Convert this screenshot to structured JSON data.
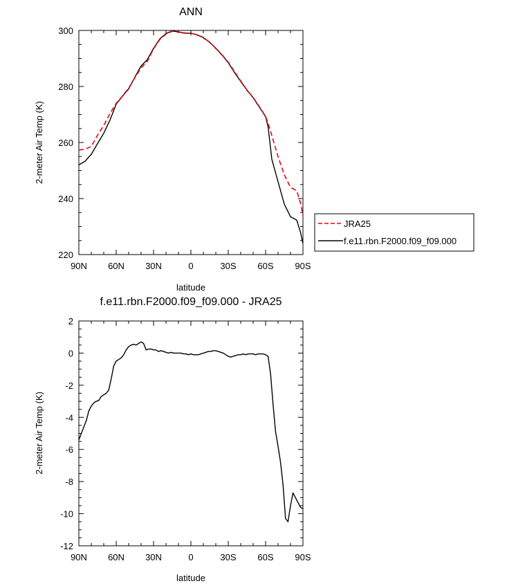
{
  "chart_data": [
    {
      "type": "line",
      "title": "ANN",
      "xlabel": "latitude",
      "ylabel": "2-meter Air Temp (K)",
      "x_ticks": [
        90,
        60,
        30,
        0,
        -30,
        -60,
        -90
      ],
      "x_tick_labels": [
        "90N",
        "60N",
        "30N",
        "0",
        "30S",
        "60S",
        "90S"
      ],
      "xlim": [
        90,
        -90
      ],
      "y_ticks": [
        220,
        240,
        260,
        280,
        300
      ],
      "ylim": [
        220,
        300
      ],
      "legend_position": "right",
      "series": [
        {
          "name": "JRA25",
          "style": "dashed",
          "color": "#e8000b",
          "x": [
            90,
            85,
            80,
            75,
            70,
            65,
            60,
            55,
            50,
            45,
            40,
            35,
            30,
            25,
            20,
            15,
            10,
            5,
            0,
            -5,
            -10,
            -15,
            -20,
            -25,
            -30,
            -35,
            -40,
            -45,
            -50,
            -55,
            -60,
            -62,
            -65,
            -70,
            -75,
            -80,
            -85,
            -88,
            -90
          ],
          "values": [
            257.3,
            257.6,
            258.6,
            262.6,
            266.1,
            270.3,
            274.0,
            276.6,
            279.4,
            283.1,
            286.6,
            289.0,
            293.4,
            296.8,
            298.7,
            299.7,
            299.4,
            299.1,
            299.0,
            298.5,
            297.5,
            295.8,
            293.7,
            291.3,
            288.7,
            285.3,
            282.0,
            278.8,
            276.1,
            272.8,
            269.3,
            266.9,
            262.5,
            255.0,
            248.5,
            244.0,
            242.8,
            238.5,
            234.0
          ]
        },
        {
          "name": "f.e11.rbn.F2000.f09_f09.000",
          "style": "solid",
          "color": "#000000",
          "x": [
            90,
            85,
            80,
            75,
            70,
            65,
            60,
            55,
            50,
            45,
            40,
            35,
            30,
            25,
            20,
            15,
            10,
            5,
            0,
            -5,
            -10,
            -15,
            -20,
            -25,
            -30,
            -35,
            -40,
            -45,
            -50,
            -55,
            -60,
            -62,
            -65,
            -70,
            -75,
            -80,
            -85,
            -88,
            -90
          ],
          "values": [
            252.0,
            253.3,
            255.8,
            259.6,
            263.3,
            268.0,
            273.7,
            276.5,
            279.1,
            283.3,
            287.3,
            289.6,
            293.6,
            297.0,
            298.9,
            299.8,
            299.5,
            299.0,
            299.0,
            298.4,
            297.4,
            295.8,
            293.6,
            291.2,
            288.5,
            285.0,
            281.8,
            278.7,
            276.0,
            272.6,
            269.2,
            265.6,
            254.0,
            246.0,
            238.0,
            233.5,
            232.3,
            228.0,
            224.0
          ]
        }
      ]
    },
    {
      "type": "line",
      "title": "f.e11.rbn.F2000.f09_f09.000 - JRA25",
      "xlabel": "latitude",
      "ylabel": "2-meter Air Temp (K)",
      "x_ticks": [
        90,
        60,
        30,
        0,
        -30,
        -60,
        -90
      ],
      "x_tick_labels": [
        "90N",
        "60N",
        "30N",
        "0",
        "30S",
        "60S",
        "90S"
      ],
      "xlim": [
        90,
        -90
      ],
      "y_ticks": [
        2,
        0,
        -2,
        -4,
        -6,
        -8,
        -10,
        -12
      ],
      "y_tick_labels": [
        "2",
        "0",
        "-2",
        "-4",
        "-6",
        "-8",
        "-10",
        "-12"
      ],
      "ylim": [
        -12,
        2
      ],
      "series": [
        {
          "style": "solid",
          "color": "#000000",
          "x": [
            90,
            88,
            86,
            84,
            82,
            80,
            78,
            76,
            74,
            72,
            70,
            68,
            66,
            64,
            62,
            60,
            58,
            56,
            54,
            52,
            50,
            48,
            46,
            44,
            42,
            40,
            38,
            36,
            34,
            32,
            30,
            28,
            26,
            24,
            22,
            20,
            18,
            16,
            14,
            12,
            10,
            8,
            6,
            4,
            2,
            0,
            -2,
            -4,
            -6,
            -8,
            -10,
            -12,
            -14,
            -16,
            -18,
            -20,
            -22,
            -24,
            -26,
            -28,
            -30,
            -32,
            -34,
            -36,
            -38,
            -40,
            -42,
            -44,
            -46,
            -48,
            -50,
            -52,
            -54,
            -56,
            -58,
            -60,
            -62,
            -64,
            -66,
            -68,
            -70,
            -72,
            -74,
            -76,
            -78,
            -80,
            -82,
            -84,
            -86,
            -88,
            -90
          ],
          "values": [
            -5.4,
            -5.0,
            -4.6,
            -4.2,
            -3.6,
            -3.3,
            -3.1,
            -3.0,
            -2.95,
            -2.7,
            -2.6,
            -2.5,
            -2.3,
            -1.6,
            -0.8,
            -0.5,
            -0.4,
            -0.3,
            -0.1,
            0.2,
            0.4,
            0.5,
            0.55,
            0.5,
            0.6,
            0.7,
            0.6,
            0.2,
            0.25,
            0.25,
            0.2,
            0.2,
            0.1,
            0.15,
            0.1,
            0.05,
            0.0,
            0.05,
            0.0,
            0.0,
            0.0,
            0.0,
            -0.05,
            -0.05,
            -0.1,
            -0.05,
            -0.1,
            -0.1,
            -0.1,
            -0.05,
            0.0,
            0.05,
            0.1,
            0.1,
            0.15,
            0.15,
            0.1,
            0.05,
            0.0,
            -0.1,
            -0.2,
            -0.25,
            -0.2,
            -0.15,
            -0.1,
            -0.1,
            -0.05,
            -0.1,
            -0.05,
            -0.05,
            -0.05,
            -0.1,
            -0.05,
            -0.05,
            -0.05,
            -0.1,
            -0.2,
            -1.3,
            -3.2,
            -4.9,
            -5.8,
            -6.8,
            -8.2,
            -10.3,
            -10.5,
            -9.5,
            -8.7,
            -9.0,
            -9.3,
            -9.6,
            -9.7
          ]
        }
      ]
    }
  ]
}
